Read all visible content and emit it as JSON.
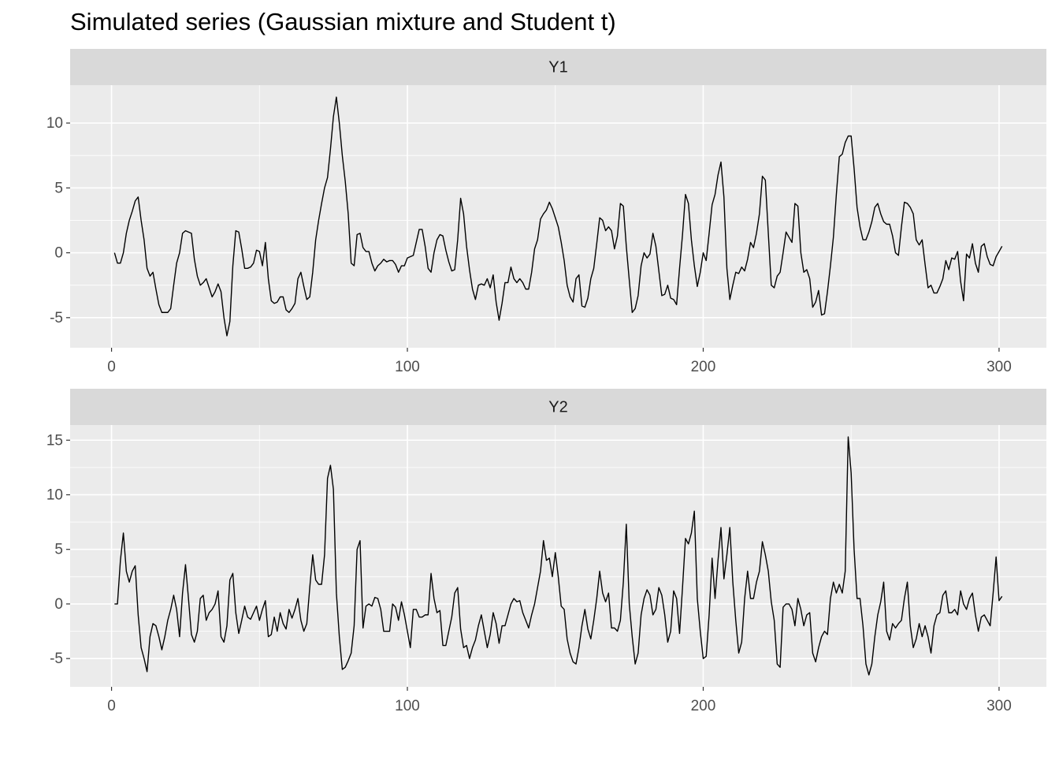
{
  "chart_data": {
    "type": "line",
    "title": "Simulated series (Gaussian mixture and Student t)",
    "grid": true,
    "xlim": [
      -14,
      316
    ],
    "xticks": [
      0,
      100,
      200,
      300
    ],
    "x": [
      1,
      2,
      3,
      4,
      5,
      6,
      7,
      8,
      9,
      10,
      11,
      12,
      13,
      14,
      15,
      16,
      17,
      18,
      19,
      20,
      21,
      22,
      23,
      24,
      25,
      26,
      27,
      28,
      29,
      30,
      31,
      32,
      33,
      34,
      35,
      36,
      37,
      38,
      39,
      40,
      41,
      42,
      43,
      44,
      45,
      46,
      47,
      48,
      49,
      50,
      51,
      52,
      53,
      54,
      55,
      56,
      57,
      58,
      59,
      60,
      61,
      62,
      63,
      64,
      65,
      66,
      67,
      68,
      69,
      70,
      71,
      72,
      73,
      74,
      75,
      76,
      77,
      78,
      79,
      80,
      81,
      82,
      83,
      84,
      85,
      86,
      87,
      88,
      89,
      90,
      91,
      92,
      93,
      94,
      95,
      96,
      97,
      98,
      99,
      100,
      101,
      102,
      103,
      104,
      105,
      106,
      107,
      108,
      109,
      110,
      111,
      112,
      113,
      114,
      115,
      116,
      117,
      118,
      119,
      120,
      121,
      122,
      123,
      124,
      125,
      126,
      127,
      128,
      129,
      130,
      131,
      132,
      133,
      134,
      135,
      136,
      137,
      138,
      139,
      140,
      141,
      142,
      143,
      144,
      145,
      146,
      147,
      148,
      149,
      150,
      151,
      152,
      153,
      154,
      155,
      156,
      157,
      158,
      159,
      160,
      161,
      162,
      163,
      164,
      165,
      166,
      167,
      168,
      169,
      170,
      171,
      172,
      173,
      174,
      175,
      176,
      177,
      178,
      179,
      180,
      181,
      182,
      183,
      184,
      185,
      186,
      187,
      188,
      189,
      190,
      191,
      192,
      193,
      194,
      195,
      196,
      197,
      198,
      199,
      200,
      201,
      202,
      203,
      204,
      205,
      206,
      207,
      208,
      209,
      210,
      211,
      212,
      213,
      214,
      215,
      216,
      217,
      218,
      219,
      220,
      221,
      222,
      223,
      224,
      225,
      226,
      227,
      228,
      229,
      230,
      231,
      232,
      233,
      234,
      235,
      236,
      237,
      238,
      239,
      240,
      241,
      242,
      243,
      244,
      245,
      246,
      247,
      248,
      249,
      250,
      251,
      252,
      253,
      254,
      255,
      256,
      257,
      258,
      259,
      260,
      261,
      262,
      263,
      264,
      265,
      266,
      267,
      268,
      269,
      270,
      271,
      272,
      273,
      274,
      275,
      276,
      277,
      278,
      279,
      280,
      281,
      282,
      283,
      284,
      285,
      286,
      287,
      288,
      289,
      290,
      291,
      292,
      293,
      294,
      295,
      296,
      297,
      298,
      299,
      300,
      301
    ],
    "series": [
      {
        "name": "Y1",
        "color": "#000000",
        "ylim": [
          -7.32,
          12.92
        ],
        "yticks": [
          -5,
          0,
          5,
          10
        ],
        "values": [
          0,
          -0.8,
          -0.8,
          0,
          1.5,
          2.5,
          3.2,
          4,
          4.3,
          2.5,
          1,
          -1.2,
          -1.8,
          -1.5,
          -2.8,
          -4,
          -4.6,
          -4.6,
          -4.6,
          -4.3,
          -2.5,
          -0.8,
          0,
          1.5,
          1.7,
          1.6,
          1.5,
          -0.5,
          -1.8,
          -2.5,
          -2.3,
          -2,
          -2.7,
          -3.4,
          -3,
          -2.4,
          -3,
          -5,
          -6.4,
          -5.3,
          -1,
          1.7,
          1.6,
          0.3,
          -1.2,
          -1.2,
          -1.1,
          -0.8,
          0.2,
          0.1,
          -1,
          0.8,
          -2,
          -3.7,
          -3.9,
          -3.8,
          -3.4,
          -3.4,
          -4.4,
          -4.6,
          -4.3,
          -3.9,
          -2,
          -1.5,
          -2.6,
          -3.6,
          -3.4,
          -1.5,
          1,
          2.5,
          3.8,
          5,
          5.8,
          8,
          10.5,
          12,
          10,
          7.5,
          5.5,
          3,
          -0.8,
          -1,
          1.4,
          1.5,
          0.4,
          0.1,
          0.1,
          -0.8,
          -1.4,
          -1,
          -0.8,
          -0.5,
          -0.7,
          -0.6,
          -0.6,
          -0.9,
          -1.5,
          -1,
          -1,
          -0.4,
          -0.3,
          -0.2,
          0.8,
          1.8,
          1.8,
          0.5,
          -1.2,
          -1.5,
          0,
          1,
          1.4,
          1.3,
          0.2,
          -0.7,
          -1.4,
          -1.3,
          1,
          4.2,
          3,
          0.5,
          -1.3,
          -2.8,
          -3.6,
          -2.5,
          -2.4,
          -2.5,
          -2,
          -2.7,
          -1.7,
          -3.8,
          -5.2,
          -3.9,
          -2.3,
          -2.3,
          -1.1,
          -2,
          -2.3,
          -2,
          -2.3,
          -2.8,
          -2.8,
          -1.5,
          0.3,
          1,
          2.6,
          3,
          3.3,
          3.9,
          3.4,
          2.7,
          2,
          0.8,
          -0.6,
          -2.5,
          -3.4,
          -3.8,
          -2,
          -1.7,
          -4.1,
          -4.2,
          -3.5,
          -2,
          -1.2,
          0.7,
          2.7,
          2.5,
          1.7,
          2,
          1.7,
          0.3,
          1.3,
          3.8,
          3.6,
          0.5,
          -2.1,
          -4.6,
          -4.3,
          -3.3,
          -1,
          0,
          -0.4,
          -0.1,
          1.5,
          0.5,
          -1.4,
          -3.3,
          -3.2,
          -2.5,
          -3.5,
          -3.6,
          -4,
          -1.2,
          1.4,
          4.5,
          3.8,
          1,
          -1,
          -2.6,
          -1.5,
          0,
          -0.6,
          1.5,
          3.7,
          4.5,
          6,
          7,
          4.3,
          -1.2,
          -3.6,
          -2.5,
          -1.5,
          -1.6,
          -1.1,
          -1.4,
          -0.5,
          0.8,
          0.4,
          1.5,
          3,
          5.9,
          5.6,
          1.5,
          -2.5,
          -2.7,
          -1.8,
          -1.5,
          0,
          1.6,
          1.2,
          0.8,
          3.8,
          3.6,
          0,
          -1.5,
          -1.3,
          -2,
          -4.2,
          -3.8,
          -2.9,
          -4.8,
          -4.7,
          -3,
          -1,
          1.2,
          4.5,
          7.4,
          7.6,
          8.5,
          9,
          9,
          6.5,
          3.5,
          2,
          1,
          1,
          1.6,
          2.4,
          3.5,
          3.8,
          3,
          2.4,
          2.2,
          2.2,
          1.3,
          0,
          -0.2,
          2,
          3.9,
          3.8,
          3.5,
          3,
          1,
          0.6,
          1,
          -0.9,
          -2.7,
          -2.5,
          -3.1,
          -3.1,
          -2.6,
          -2,
          -0.6,
          -1.3,
          -0.4,
          -0.5,
          0.1,
          -2.2,
          -3.7,
          -0.1,
          -0.4,
          0.7,
          -0.8,
          -1.5,
          0.5,
          0.7,
          -0.3,
          -0.9,
          -1,
          -0.3,
          0.1,
          0.5
        ]
      },
      {
        "name": "Y2",
        "color": "#000000",
        "ylim": [
          -7.59,
          16.39
        ],
        "yticks": [
          -5,
          0,
          5,
          10,
          15
        ],
        "values": [
          0,
          0,
          4,
          6.5,
          3,
          2,
          3,
          3.5,
          -1,
          -4,
          -5,
          -6.2,
          -3,
          -1.8,
          -2,
          -3,
          -4.2,
          -3,
          -1.5,
          -0.5,
          0.8,
          -0.5,
          -3,
          1,
          3.6,
          0.5,
          -2.8,
          -3.5,
          -2.5,
          0.5,
          0.8,
          -1.5,
          -0.8,
          -0.5,
          0,
          1.2,
          -3,
          -3.5,
          -2,
          2.2,
          2.8,
          -0.8,
          -2.7,
          -1.5,
          -0.2,
          -1.2,
          -1.4,
          -0.8,
          -0.2,
          -1.5,
          -0.5,
          0.3,
          -3,
          -2.8,
          -1.2,
          -2.5,
          -0.8,
          -1.8,
          -2.3,
          -0.5,
          -1.3,
          -0.5,
          0.5,
          -1.5,
          -2.5,
          -1.8,
          1.5,
          4.5,
          2.2,
          1.8,
          1.8,
          4.5,
          11.5,
          12.7,
          10.5,
          1,
          -3,
          -6,
          -5.8,
          -5.2,
          -4.5,
          -2,
          5,
          5.8,
          -2.2,
          -0.2,
          0,
          -0.2,
          0.6,
          0.5,
          -0.5,
          -2.5,
          -2.5,
          -2.5,
          0,
          -0.3,
          -1.5,
          0.2,
          -1,
          -2.5,
          -4,
          -0.5,
          -0.5,
          -1.2,
          -1.2,
          -1,
          -1,
          2.8,
          0.5,
          -0.8,
          -0.6,
          -3.8,
          -3.8,
          -2.5,
          -1.2,
          1,
          1.5,
          -2.3,
          -4,
          -3.8,
          -5,
          -4,
          -3.3,
          -2,
          -1,
          -2.5,
          -4,
          -2.8,
          -0.8,
          -1.8,
          -3.6,
          -2,
          -2,
          -1,
          0,
          0.5,
          0.2,
          0.3,
          -0.8,
          -1.5,
          -2.2,
          -1,
          0,
          1.5,
          3,
          5.8,
          4,
          4.2,
          2.5,
          4.7,
          2.5,
          -0.2,
          -0.5,
          -3.2,
          -4.5,
          -5.3,
          -5.5,
          -4,
          -2,
          -0.5,
          -2.3,
          -3.2,
          -1.5,
          0.5,
          3,
          1,
          0.2,
          1,
          -2.2,
          -2.2,
          -2.5,
          -1.5,
          2,
          7.3,
          0,
          -3,
          -5.5,
          -4.5,
          -1,
          0.5,
          1.3,
          0.8,
          -1,
          -0.5,
          1.5,
          0.8,
          -1,
          -3.5,
          -2.5,
          1.2,
          0.5,
          -2.7,
          1.5,
          6,
          5.5,
          6.5,
          8.5,
          0.5,
          -2.5,
          -5,
          -4.8,
          -1,
          4.2,
          0.5,
          4,
          7,
          2.3,
          4.5,
          7,
          2,
          -1.5,
          -4.5,
          -3.5,
          0.5,
          3,
          0.5,
          0.5,
          2,
          3,
          5.7,
          4.5,
          3,
          0.2,
          -1.5,
          -5.5,
          -5.8,
          -0.3,
          0,
          0,
          -0.5,
          -2,
          0.5,
          -0.5,
          -2,
          -1,
          -0.8,
          -4.5,
          -5.3,
          -4,
          -3,
          -2.5,
          -2.8,
          0.5,
          2,
          1,
          1.8,
          1,
          3,
          15.3,
          12,
          5,
          0.5,
          0.5,
          -2,
          -5.5,
          -6.5,
          -5.5,
          -3,
          -1,
          0.2,
          2,
          -2.5,
          -3.3,
          -1.8,
          -2.2,
          -1.8,
          -1.5,
          0.5,
          2,
          -2,
          -4,
          -3.2,
          -1.8,
          -3,
          -2,
          -3,
          -4.5,
          -2,
          -1,
          -0.8,
          0.8,
          1.2,
          -0.8,
          -0.8,
          -0.5,
          -1,
          1.2,
          0,
          -0.5,
          0.5,
          1,
          -1,
          -2.5,
          -1.2,
          -1,
          -1.5,
          -2,
          1,
          4.3,
          0.3,
          0.7
        ]
      }
    ]
  }
}
